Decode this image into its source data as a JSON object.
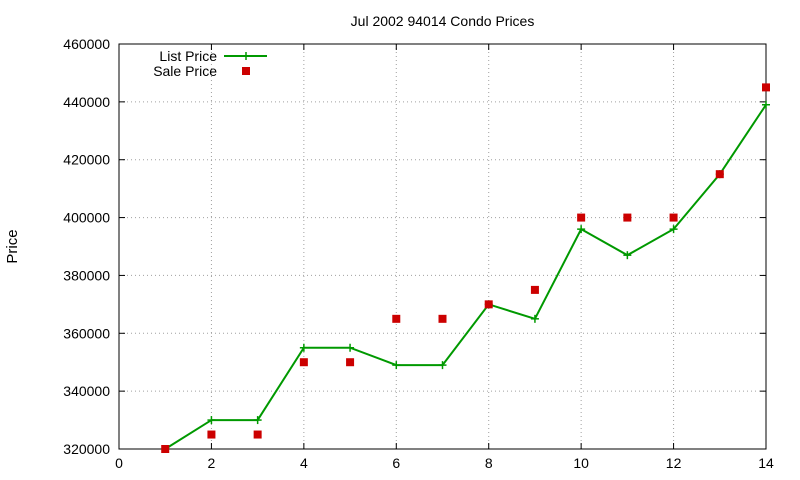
{
  "chart_data": {
    "type": "line",
    "title": "Jul 2002 94014 Condo Prices",
    "xlabel": "",
    "ylabel": "Price",
    "xlim": [
      0,
      14
    ],
    "ylim": [
      320000,
      460000
    ],
    "xticks": [
      0,
      2,
      4,
      6,
      8,
      10,
      12,
      14
    ],
    "yticks": [
      320000,
      340000,
      360000,
      380000,
      400000,
      420000,
      440000,
      460000
    ],
    "grid": true,
    "legend_position": "top-left",
    "series": [
      {
        "name": "List Price",
        "style": "lines+crosses",
        "color": "#009900",
        "x": [
          1,
          2,
          3,
          4,
          5,
          6,
          7,
          8,
          9,
          10,
          11,
          12,
          13,
          14
        ],
        "y": [
          320000,
          330000,
          330000,
          355000,
          355000,
          349000,
          349000,
          370000,
          365000,
          396000,
          387000,
          396000,
          415000,
          439000
        ]
      },
      {
        "name": "Sale Price",
        "style": "squares",
        "color": "#cc0000",
        "x": [
          1,
          2,
          3,
          4,
          5,
          6,
          7,
          8,
          9,
          10,
          11,
          12,
          13,
          14
        ],
        "y": [
          320000,
          325000,
          325000,
          350000,
          350000,
          365000,
          365000,
          370000,
          375000,
          400000,
          400000,
          400000,
          415000,
          445000
        ]
      }
    ]
  }
}
